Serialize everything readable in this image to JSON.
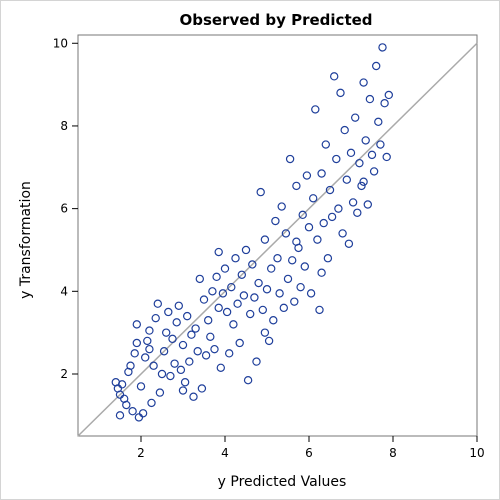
{
  "chart_data": {
    "type": "scatter",
    "title": "Observed by Predicted",
    "xlabel": "y Predicted Values",
    "ylabel": "y Transformation",
    "xlim": [
      0.5,
      10
    ],
    "ylim": [
      0.5,
      10.2
    ],
    "xticks": [
      2,
      4,
      6,
      8,
      10
    ],
    "yticks": [
      2,
      4,
      6,
      8,
      10
    ],
    "reference_line": "y = x",
    "marker_color": "#1f3f9b",
    "reference_line_color": "#aaaaaa",
    "points": [
      [
        1.4,
        1.8
      ],
      [
        1.45,
        1.65
      ],
      [
        1.5,
        1.5
      ],
      [
        1.55,
        1.75
      ],
      [
        1.6,
        1.4
      ],
      [
        1.5,
        1.0
      ],
      [
        1.65,
        1.25
      ],
      [
        1.7,
        2.05
      ],
      [
        1.75,
        2.2
      ],
      [
        1.8,
        1.1
      ],
      [
        1.85,
        2.5
      ],
      [
        1.9,
        2.75
      ],
      [
        1.9,
        3.2
      ],
      [
        1.95,
        0.95
      ],
      [
        2.0,
        1.7
      ],
      [
        2.05,
        1.05
      ],
      [
        2.1,
        2.4
      ],
      [
        2.15,
        2.8
      ],
      [
        2.2,
        3.05
      ],
      [
        2.25,
        1.3
      ],
      [
        2.3,
        2.2
      ],
      [
        2.35,
        3.35
      ],
      [
        2.4,
        3.7
      ],
      [
        2.45,
        1.55
      ],
      [
        2.5,
        2.0
      ],
      [
        2.55,
        2.55
      ],
      [
        2.6,
        3.0
      ],
      [
        2.65,
        3.5
      ],
      [
        2.7,
        1.95
      ],
      [
        2.75,
        2.85
      ],
      [
        2.8,
        2.25
      ],
      [
        2.85,
        3.25
      ],
      [
        2.9,
        3.65
      ],
      [
        2.95,
        2.1
      ],
      [
        3.0,
        2.7
      ],
      [
        3.05,
        1.8
      ],
      [
        3.1,
        3.4
      ],
      [
        3.15,
        2.3
      ],
      [
        3.2,
        2.95
      ],
      [
        3.25,
        1.45
      ],
      [
        3.3,
        3.1
      ],
      [
        3.35,
        2.55
      ],
      [
        3.4,
        4.3
      ],
      [
        3.45,
        1.65
      ],
      [
        3.5,
        3.8
      ],
      [
        3.55,
        2.45
      ],
      [
        3.6,
        3.3
      ],
      [
        3.65,
        2.9
      ],
      [
        3.7,
        4.0
      ],
      [
        3.75,
        2.6
      ],
      [
        3.8,
        4.35
      ],
      [
        3.85,
        3.6
      ],
      [
        3.9,
        2.15
      ],
      [
        3.95,
        3.95
      ],
      [
        4.0,
        4.55
      ],
      [
        4.05,
        3.5
      ],
      [
        4.1,
        2.5
      ],
      [
        4.15,
        4.1
      ],
      [
        4.2,
        3.2
      ],
      [
        4.25,
        4.8
      ],
      [
        4.3,
        3.7
      ],
      [
        4.35,
        2.75
      ],
      [
        4.4,
        4.4
      ],
      [
        4.45,
        3.9
      ],
      [
        4.5,
        5.0
      ],
      [
        4.55,
        1.85
      ],
      [
        4.6,
        3.45
      ],
      [
        4.65,
        4.65
      ],
      [
        4.7,
        3.85
      ],
      [
        4.75,
        2.3
      ],
      [
        4.8,
        4.2
      ],
      [
        4.85,
        6.4
      ],
      [
        4.9,
        3.55
      ],
      [
        4.95,
        5.25
      ],
      [
        5.0,
        4.05
      ],
      [
        5.05,
        2.8
      ],
      [
        5.1,
        4.55
      ],
      [
        5.15,
        3.3
      ],
      [
        5.2,
        5.7
      ],
      [
        5.25,
        4.8
      ],
      [
        5.3,
        3.95
      ],
      [
        5.35,
        6.05
      ],
      [
        5.4,
        3.6
      ],
      [
        5.45,
        5.4
      ],
      [
        5.5,
        4.3
      ],
      [
        5.55,
        7.2
      ],
      [
        5.6,
        4.75
      ],
      [
        5.65,
        3.75
      ],
      [
        5.7,
        6.55
      ],
      [
        5.75,
        5.05
      ],
      [
        5.8,
        4.1
      ],
      [
        5.85,
        5.85
      ],
      [
        5.9,
        4.6
      ],
      [
        5.95,
        6.8
      ],
      [
        6.0,
        5.55
      ],
      [
        6.05,
        3.95
      ],
      [
        6.1,
        6.25
      ],
      [
        6.15,
        8.4
      ],
      [
        6.2,
        5.25
      ],
      [
        6.25,
        3.55
      ],
      [
        6.3,
        6.85
      ],
      [
        6.35,
        5.65
      ],
      [
        6.4,
        7.55
      ],
      [
        6.45,
        4.8
      ],
      [
        6.5,
        6.45
      ],
      [
        6.55,
        5.8
      ],
      [
        6.6,
        9.2
      ],
      [
        6.65,
        7.2
      ],
      [
        6.7,
        6.0
      ],
      [
        6.75,
        8.8
      ],
      [
        6.8,
        5.4
      ],
      [
        6.85,
        7.9
      ],
      [
        6.9,
        6.7
      ],
      [
        6.95,
        5.15
      ],
      [
        7.0,
        7.35
      ],
      [
        7.05,
        6.15
      ],
      [
        7.1,
        8.2
      ],
      [
        7.15,
        5.9
      ],
      [
        7.2,
        7.1
      ],
      [
        7.25,
        6.55
      ],
      [
        7.3,
        9.05
      ],
      [
        7.35,
        7.65
      ],
      [
        7.4,
        6.1
      ],
      [
        7.45,
        8.65
      ],
      [
        7.5,
        7.3
      ],
      [
        7.55,
        6.9
      ],
      [
        7.6,
        9.45
      ],
      [
        7.65,
        8.1
      ],
      [
        7.7,
        7.55
      ],
      [
        7.75,
        9.9
      ],
      [
        7.8,
        8.55
      ],
      [
        7.85,
        7.25
      ],
      [
        7.9,
        8.75
      ],
      [
        2.2,
        2.6
      ],
      [
        3.0,
        1.6
      ],
      [
        3.85,
        4.95
      ],
      [
        4.95,
        3.0
      ],
      [
        5.7,
        5.2
      ],
      [
        6.3,
        4.45
      ],
      [
        7.3,
        6.65
      ]
    ]
  }
}
